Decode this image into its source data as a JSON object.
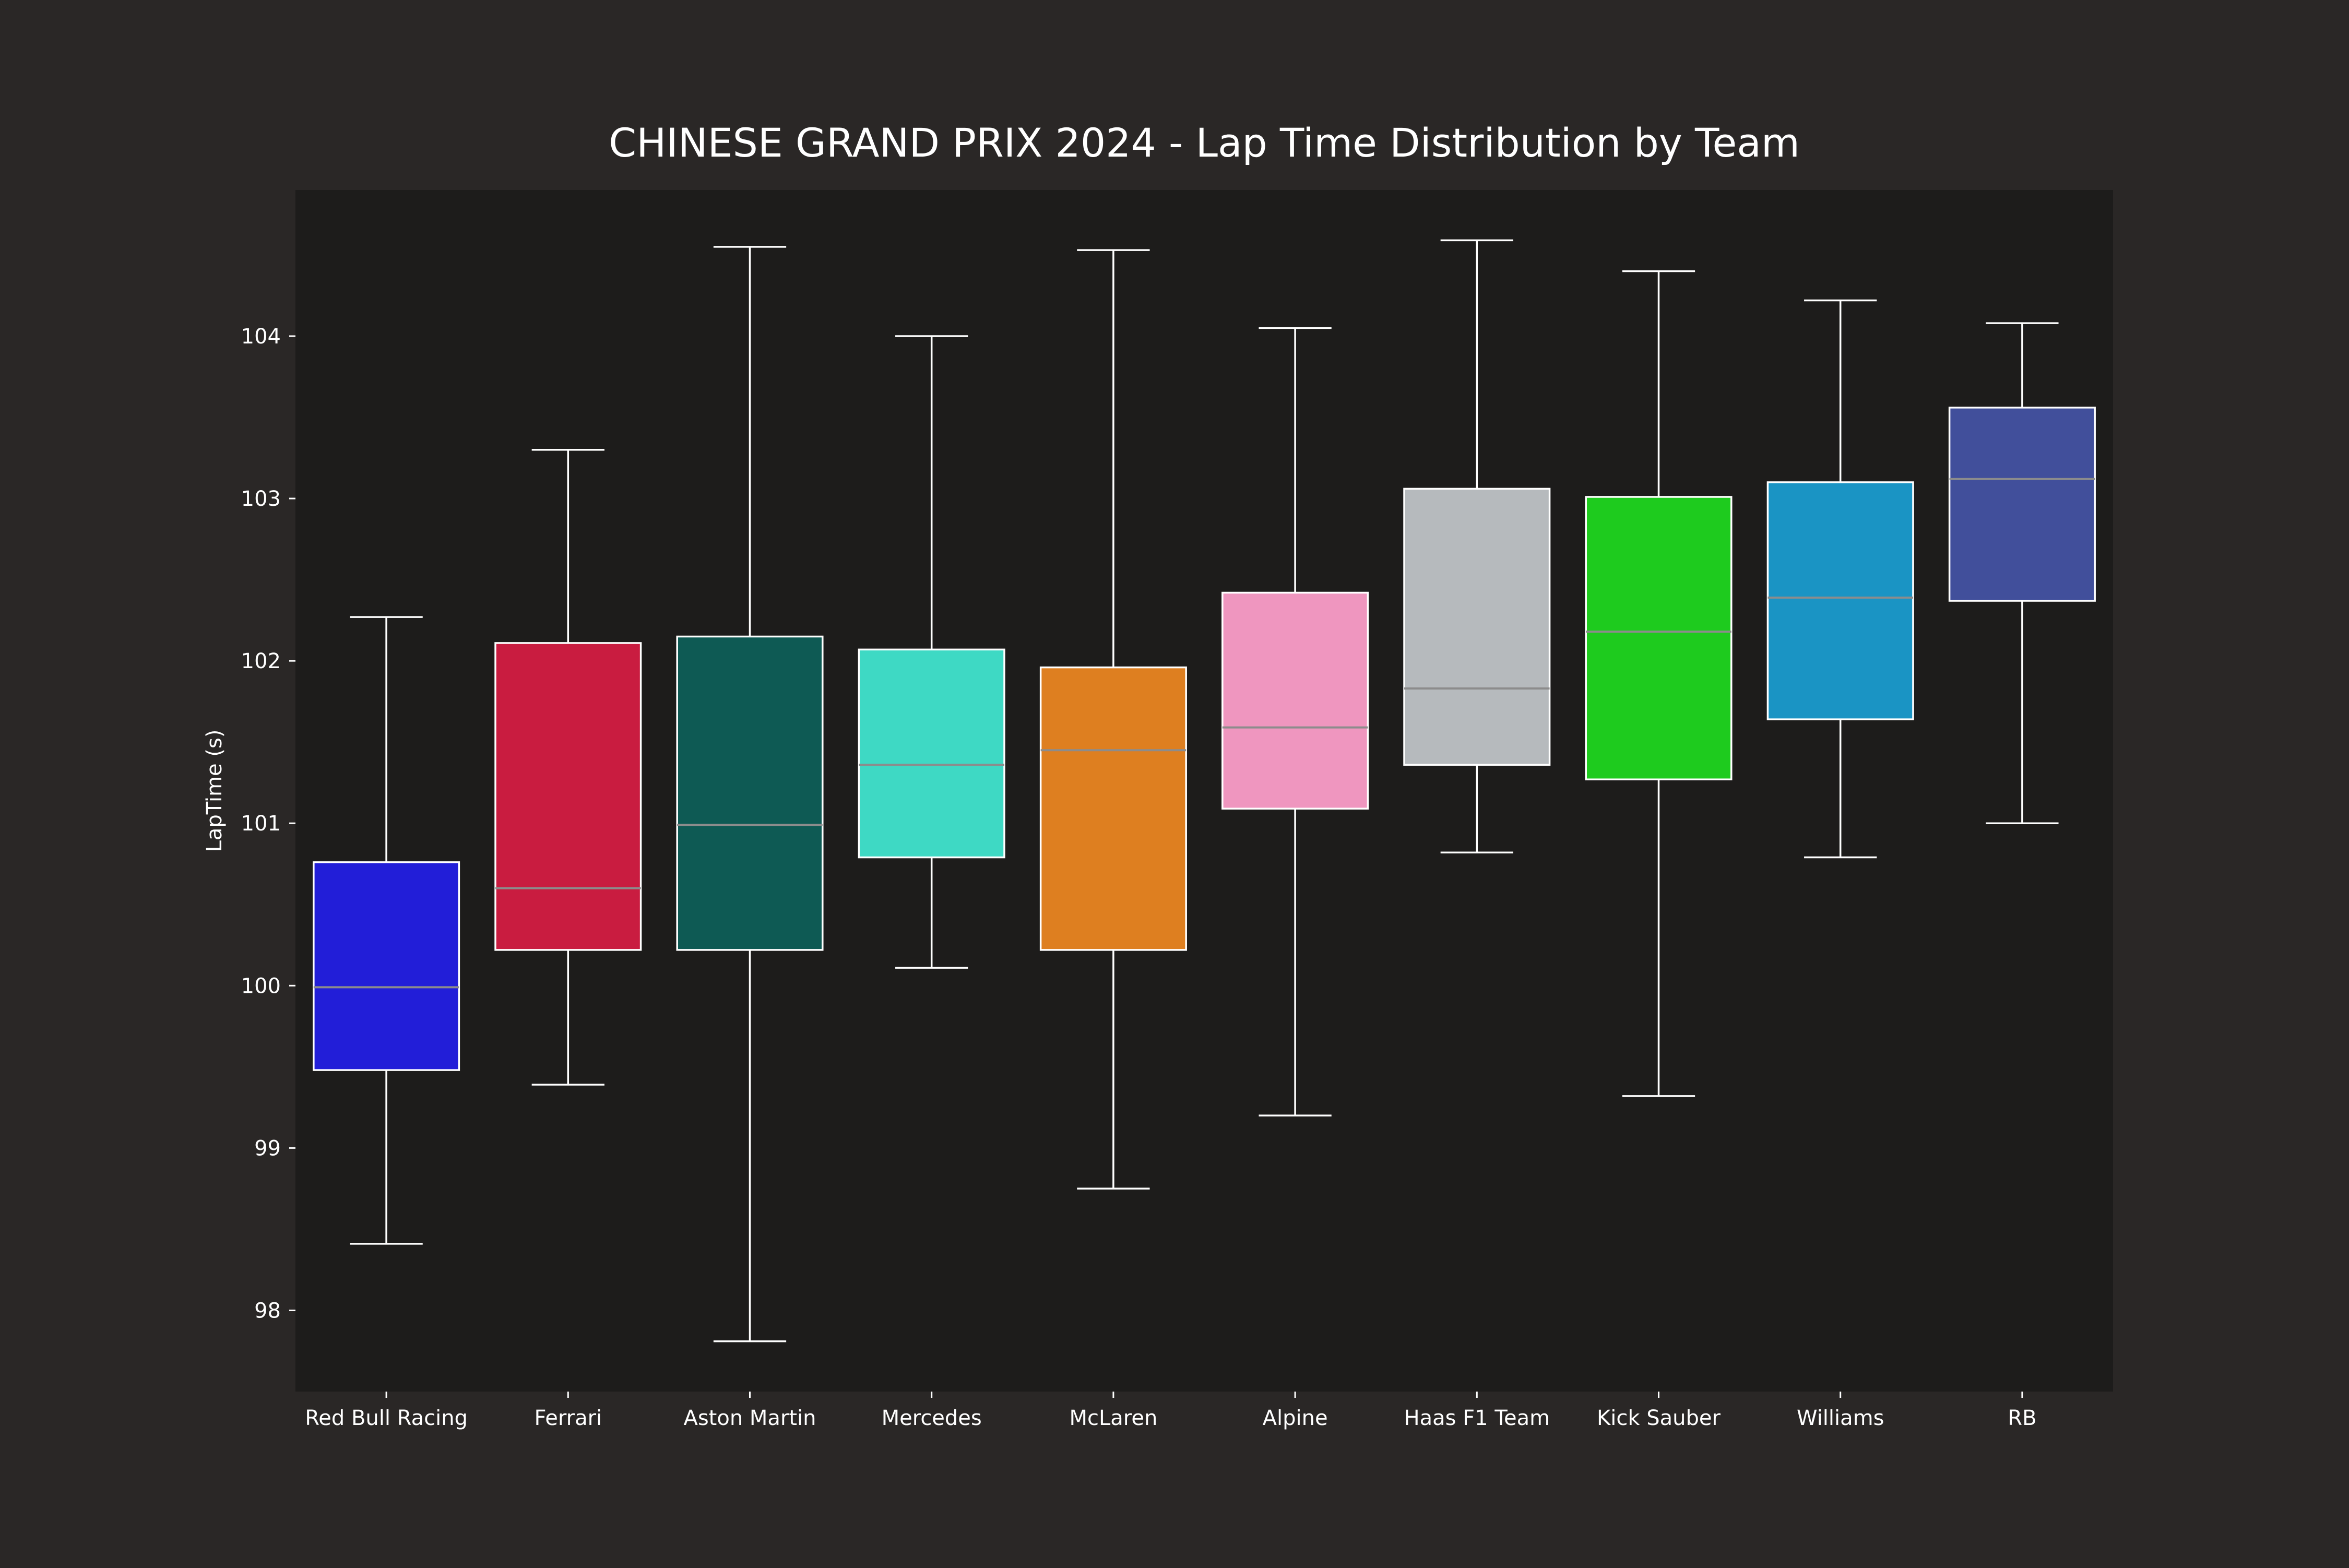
{
  "chart_data": {
    "type": "box",
    "title": "CHINESE GRAND PRIX 2024 - Lap Time Distribution by Team",
    "xlabel": "",
    "ylabel": "LapTime (s)",
    "ylim": [
      97.5,
      104.9
    ],
    "yticks": [
      98,
      99,
      100,
      101,
      102,
      103,
      104
    ],
    "grid": false,
    "colors": {
      "figure_background": "#2a2726",
      "plot_background": "#1d1c1b",
      "text": "#ffffff",
      "whisker": "#ffffff",
      "median": "#8c8c8c"
    },
    "categories": [
      "Red Bull Racing",
      "Ferrari",
      "Aston Martin",
      "Mercedes",
      "McLaren",
      "Alpine",
      "Haas F1 Team",
      "Kick Sauber",
      "Williams",
      "RB"
    ],
    "series": [
      {
        "category": "Red Bull Racing",
        "color": "#221ed8",
        "min": 98.41,
        "q1": 99.48,
        "median": 99.99,
        "q3": 100.76,
        "max": 102.27
      },
      {
        "category": "Ferrari",
        "color": "#c91c40",
        "min": 99.39,
        "q1": 100.22,
        "median": 100.6,
        "q3": 102.11,
        "max": 103.3
      },
      {
        "category": "Aston Martin",
        "color": "#0e5a54",
        "min": 97.81,
        "q1": 100.22,
        "median": 100.99,
        "q3": 102.15,
        "max": 104.55
      },
      {
        "category": "Mercedes",
        "color": "#3ed9c4",
        "min": 100.11,
        "q1": 100.79,
        "median": 101.36,
        "q3": 102.07,
        "max": 104.0
      },
      {
        "category": "McLaren",
        "color": "#de7f20",
        "min": 98.75,
        "q1": 100.22,
        "median": 101.45,
        "q3": 101.96,
        "max": 104.53
      },
      {
        "category": "Alpine",
        "color": "#ef96bf",
        "min": 99.2,
        "q1": 101.09,
        "median": 101.59,
        "q3": 102.42,
        "max": 104.05
      },
      {
        "category": "Haas F1 Team",
        "color": "#b6babd",
        "min": 100.82,
        "q1": 101.36,
        "median": 101.83,
        "q3": 103.06,
        "max": 104.59
      },
      {
        "category": "Kick Sauber",
        "color": "#1ecb1e",
        "min": 99.32,
        "q1": 101.27,
        "median": 102.18,
        "q3": 103.01,
        "max": 104.4
      },
      {
        "category": "Williams",
        "color": "#1a94c4",
        "min": 100.79,
        "q1": 101.64,
        "median": 102.39,
        "q3": 103.1,
        "max": 104.22
      },
      {
        "category": "RB",
        "color": "#414f9b",
        "min": 101.0,
        "q1": 102.37,
        "median": 103.12,
        "q3": 103.56,
        "max": 104.08
      }
    ]
  }
}
